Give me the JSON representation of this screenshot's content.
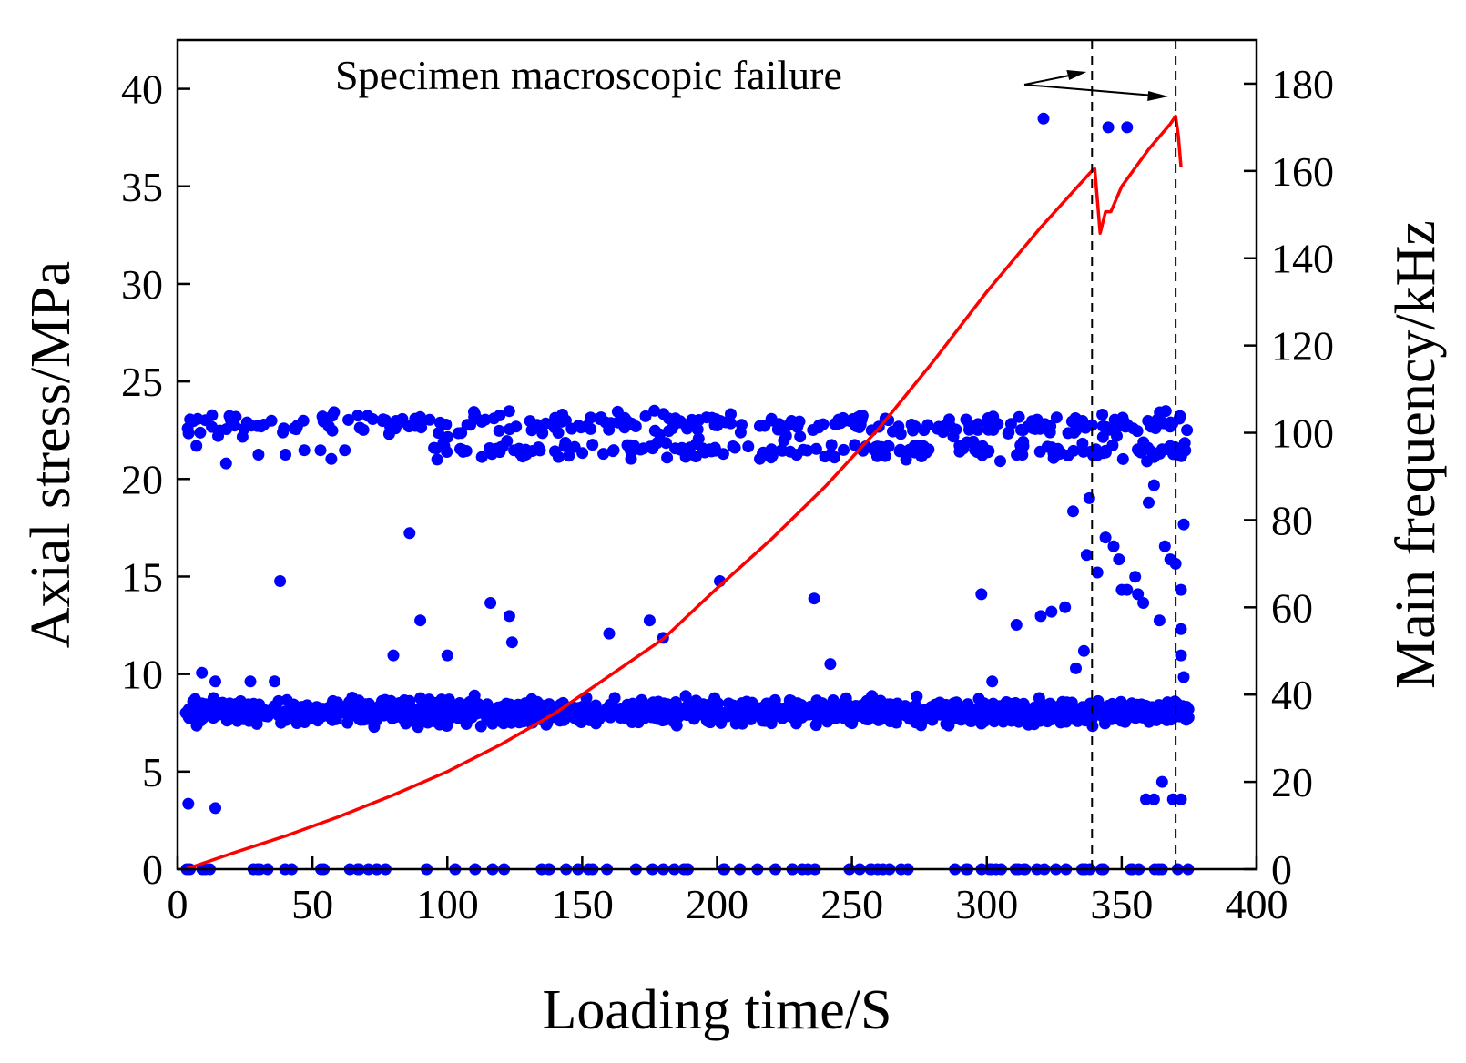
{
  "chart_data": {
    "type": "scatter+line",
    "title": "",
    "xlabel": "Loading time/S",
    "ylabel_left": "Axial stress/MPa",
    "ylabel_right": "Main frequency/kHz",
    "xlim": [
      0,
      400
    ],
    "ylim_left": [
      0,
      42.5
    ],
    "ylim_right": [
      0,
      190
    ],
    "x_ticks": [
      0,
      50,
      100,
      150,
      200,
      250,
      300,
      350,
      400
    ],
    "y_left_ticks": [
      0,
      5,
      10,
      15,
      20,
      25,
      30,
      35,
      40
    ],
    "y_right_ticks": [
      0,
      20,
      40,
      60,
      80,
      100,
      120,
      140,
      160,
      180
    ],
    "colors": {
      "stress": "#ff0000",
      "frequency": "#0000ff",
      "axis": "#000000"
    },
    "annotation": {
      "text": "Specimen macroscopic failure",
      "failure_times": [
        339,
        370
      ]
    },
    "series": [
      {
        "name": "Axial stress",
        "axis": "left",
        "kind": "line",
        "x": [
          3,
          20,
          40,
          60,
          80,
          100,
          120,
          140,
          160,
          180,
          200,
          220,
          240,
          260,
          280,
          300,
          320,
          339,
          340,
          342,
          344,
          346,
          350,
          360,
          368,
          370,
          371,
          372
        ],
        "y": [
          0,
          0.8,
          1.7,
          2.7,
          3.8,
          5.0,
          6.4,
          8.0,
          9.9,
          11.8,
          14.4,
          16.9,
          19.6,
          22.6,
          26.0,
          29.6,
          32.9,
          35.8,
          35.9,
          32.6,
          33.7,
          33.7,
          35.0,
          36.9,
          38.2,
          38.6,
          37.6,
          36.0
        ]
      },
      {
        "name": "Main frequency",
        "axis": "right",
        "kind": "scatter",
        "bands": [
          {
            "label": "band-102kHz",
            "x_range": [
              3,
              375
            ],
            "center": 102,
            "spread": 1.3,
            "count": 280
          },
          {
            "label": "band-96kHz",
            "x_range": [
              95,
              375
            ],
            "center": 96,
            "spread": 1.0,
            "count": 180
          },
          {
            "label": "band-36kHz",
            "x_range": [
              3,
              375
            ],
            "center": 36,
            "spread": 1.3,
            "count": 1300
          },
          {
            "label": "band-0kHz",
            "x_range": [
              3,
              375
            ],
            "center": 0,
            "spread": 0,
            "count": 90
          }
        ],
        "points": [
          [
            321,
            172
          ],
          [
            345,
            170
          ],
          [
            352,
            170
          ],
          [
            7,
            97
          ],
          [
            18,
            93
          ],
          [
            30,
            95
          ],
          [
            40,
            95
          ],
          [
            47,
            96
          ],
          [
            53,
            96
          ],
          [
            57,
            94
          ],
          [
            62,
            96
          ],
          [
            86,
            77
          ],
          [
            90,
            57
          ],
          [
            38,
            66
          ],
          [
            80,
            49
          ],
          [
            100,
            49
          ],
          [
            116,
            61
          ],
          [
            123,
            58
          ],
          [
            124,
            52
          ],
          [
            160,
            54
          ],
          [
            175,
            57
          ],
          [
            180,
            53
          ],
          [
            201,
            66
          ],
          [
            236,
            62
          ],
          [
            298,
            63
          ],
          [
            311,
            56
          ],
          [
            320,
            58
          ],
          [
            324,
            59
          ],
          [
            329,
            60
          ],
          [
            332,
            82
          ],
          [
            333,
            46
          ],
          [
            336,
            50
          ],
          [
            337,
            72
          ],
          [
            338,
            85
          ],
          [
            341,
            68
          ],
          [
            344,
            76
          ],
          [
            347,
            74
          ],
          [
            349,
            71
          ],
          [
            350,
            64
          ],
          [
            352,
            64
          ],
          [
            355,
            67
          ],
          [
            356,
            63
          ],
          [
            358,
            61
          ],
          [
            360,
            84
          ],
          [
            362,
            88
          ],
          [
            364,
            57
          ],
          [
            366,
            74
          ],
          [
            368,
            71
          ],
          [
            370,
            70
          ],
          [
            373,
            79
          ],
          [
            372,
            64
          ],
          [
            372,
            55
          ],
          [
            372,
            49
          ],
          [
            373,
            44
          ],
          [
            4,
            15
          ],
          [
            14,
            14
          ],
          [
            359,
            16
          ],
          [
            362,
            16
          ],
          [
            365,
            20
          ],
          [
            369,
            16
          ],
          [
            372,
            16
          ],
          [
            9,
            45
          ],
          [
            14,
            43
          ],
          [
            27,
            43
          ],
          [
            36,
            43
          ],
          [
            242,
            47
          ],
          [
            302,
            43
          ]
        ]
      }
    ]
  }
}
